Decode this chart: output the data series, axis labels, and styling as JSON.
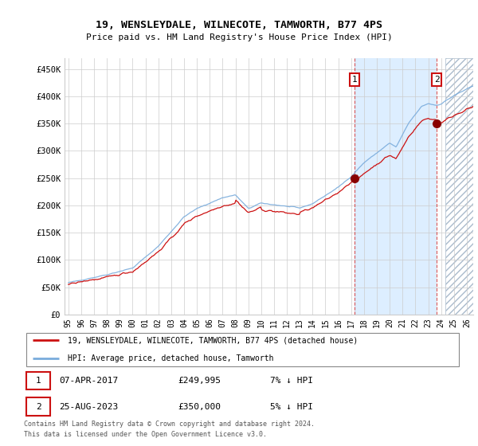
{
  "title": "19, WENSLEYDALE, WILNECOTE, TAMWORTH, B77 4PS",
  "subtitle": "Price paid vs. HM Land Registry's House Price Index (HPI)",
  "ylabel_ticks": [
    "£0",
    "£50K",
    "£100K",
    "£150K",
    "£200K",
    "£250K",
    "£300K",
    "£350K",
    "£400K",
    "£450K"
  ],
  "ylim": [
    0,
    470000
  ],
  "xlim_start": 1995.0,
  "xlim_end": 2026.5,
  "transaction1": {
    "date": "07-APR-2017",
    "price": 249995,
    "label": "1",
    "year": 2017.27
  },
  "transaction2": {
    "date": "25-AUG-2023",
    "price": 350000,
    "label": "2",
    "year": 2023.65
  },
  "legend_line1": "19, WENSLEYDALE, WILNECOTE, TAMWORTH, B77 4PS (detached house)",
  "legend_line2": "HPI: Average price, detached house, Tamworth",
  "footer1": "Contains HM Land Registry data © Crown copyright and database right 2024.",
  "footer2": "This data is licensed under the Open Government Licence v3.0.",
  "hpi_color": "#7aacdc",
  "price_color": "#cc1111",
  "plot_bg": "#ffffff",
  "highlight_bg": "#ddeeff",
  "grid_color": "#cccccc",
  "hatch_color": "#aabbcc",
  "ann_box_color": "#cc1111",
  "marker_color": "#880000"
}
